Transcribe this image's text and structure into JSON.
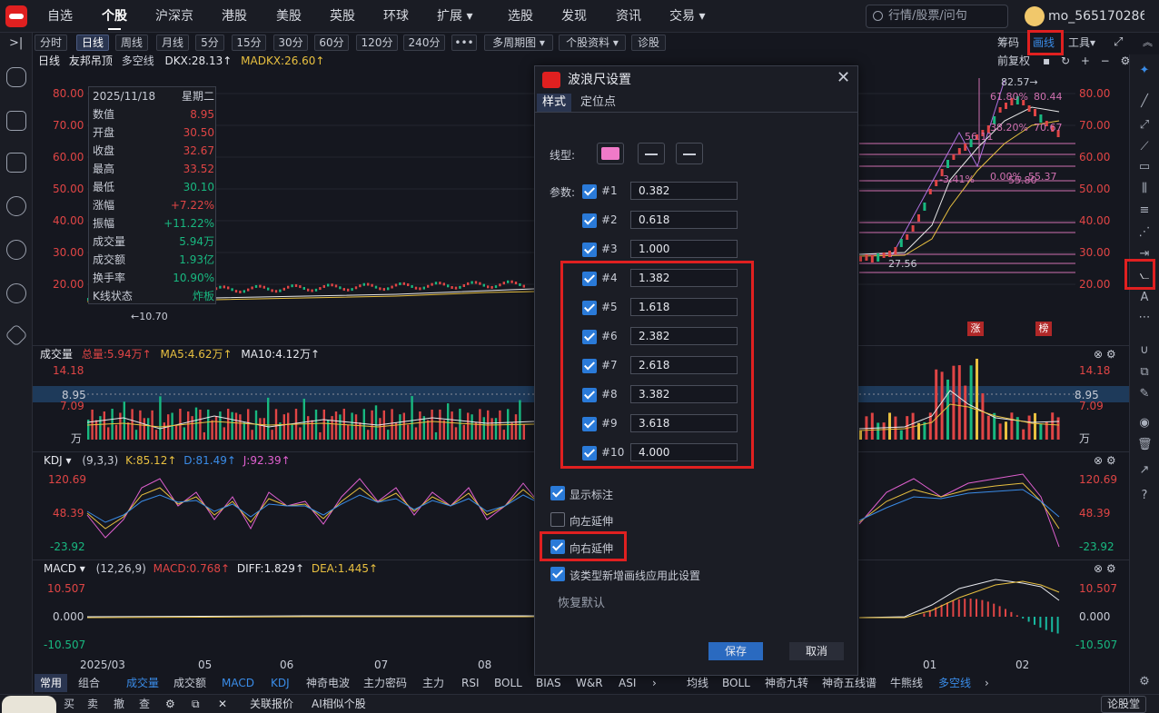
{
  "nav": {
    "items": [
      "自选",
      "个股",
      "沪深京",
      "港股",
      "美股",
      "英股",
      "环球",
      "扩展 ▾",
      "选股",
      "发现",
      "资讯",
      "交易 ▾"
    ],
    "search_placeholder": "行情/股票/问句",
    "username": "mo_565170286"
  },
  "toolbar": {
    "periods": [
      "分时",
      "日线",
      "周线",
      "月线",
      "5分",
      "15分",
      "30分",
      "60分",
      "120分",
      "240分",
      "•••",
      "多周期图 ▾",
      "个股资料 ▾",
      "诊股"
    ],
    "right": {
      "chips": "筹码",
      "drawing": "画线",
      "tools": "工具▾"
    }
  },
  "main": {
    "legend": {
      "period": "日线",
      "title": "友邦吊顶",
      "mode": "多空线",
      "dkx": "DKX:28.13↑",
      "madkx": "MADKX:26.60↑",
      "fuquan": "前复权"
    },
    "yticks": [
      "80.00",
      "70.00",
      "60.00",
      "50.00",
      "40.00",
      "30.00",
      "20.00"
    ],
    "annotations": {
      "low_price": "←10.70",
      "fib_low": "27.56",
      "fib_high": "82.57→",
      "f618": "61.80%",
      "f382": "38.20%",
      "f_neg": "-3.41%",
      "f0": "0.00%",
      "v5611": "56.11",
      "v5580": "55.80",
      "v5537": "55.37",
      "v8044": "80.44",
      "v7067": "70.67",
      "zhang": "涨",
      "bang": "榜"
    }
  },
  "data_window": {
    "date": "2025/11/18",
    "weekday": "星期二",
    "rows": [
      {
        "k": "数值",
        "v": "8.95",
        "c": "#e04545"
      },
      {
        "k": "开盘",
        "v": "30.50",
        "c": "#e04545"
      },
      {
        "k": "收盘",
        "v": "32.67",
        "c": "#e04545"
      },
      {
        "k": "最高",
        "v": "33.52",
        "c": "#e04545"
      },
      {
        "k": "最低",
        "v": "30.10",
        "c": "#18b880"
      },
      {
        "k": "涨幅",
        "v": "+7.22%",
        "c": "#e04545"
      },
      {
        "k": "振幅",
        "v": "+11.22%",
        "c": "#18b880"
      },
      {
        "k": "成交量",
        "v": "5.94万",
        "c": "#18b880"
      },
      {
        "k": "成交额",
        "v": "1.93亿",
        "c": "#18b880"
      },
      {
        "k": "换手率",
        "v": "10.90%",
        "c": "#18b880"
      },
      {
        "k": "K线状态",
        "v": "炸板",
        "c": "#18b880"
      }
    ]
  },
  "volume": {
    "title": "成交量",
    "total": "总量:5.94万↑",
    "ma5": "MA5:4.62万↑",
    "ma10": "MA10:4.12万↑",
    "yticks": [
      "14.18",
      "8.95",
      "7.09",
      "万"
    ]
  },
  "kdj": {
    "title": "KDJ ▾",
    "params": "(9,3,3)",
    "k": "K:85.12↑",
    "d": "D:81.49↑",
    "j": "J:92.39↑",
    "yticks": [
      "120.69",
      "48.39",
      "-23.92"
    ]
  },
  "macd": {
    "title": "MACD ▾",
    "params": "(12,26,9)",
    "macd": "MACD:0.768↑",
    "diff": "DIFF:1.829↑",
    "dea": "DEA:1.445↑",
    "yticks": [
      "10.507",
      "0.000",
      "-10.507"
    ]
  },
  "xaxis": [
    "2025/03",
    "05",
    "06",
    "07",
    "08",
    "01",
    "02"
  ],
  "dialog": {
    "title": "波浪尺设置",
    "tabs": [
      "样式",
      "定位点"
    ],
    "line_type_label": "线型:",
    "params_label": "参数:",
    "line_color": "#f07ac8",
    "params": [
      {
        "n": "#1",
        "v": "0.382"
      },
      {
        "n": "#2",
        "v": "0.618"
      },
      {
        "n": "#3",
        "v": "1.000"
      },
      {
        "n": "#4",
        "v": "1.382"
      },
      {
        "n": "#5",
        "v": "1.618"
      },
      {
        "n": "#6",
        "v": "2.382"
      },
      {
        "n": "#7",
        "v": "2.618"
      },
      {
        "n": "#8",
        "v": "3.382"
      },
      {
        "n": "#9",
        "v": "3.618"
      },
      {
        "n": "#10",
        "v": "4.000"
      }
    ],
    "options": [
      {
        "label": "显示标注",
        "checked": true
      },
      {
        "label": "向左延伸",
        "checked": false
      },
      {
        "label": "向右延伸",
        "checked": true
      },
      {
        "label": "该类型新增画线应用此设置",
        "checked": true
      }
    ],
    "reset": "恢复默认",
    "save": "保存",
    "cancel": "取消"
  },
  "bottom_tabs": {
    "left": [
      "常用",
      "组合"
    ],
    "indicators": [
      "成交量",
      "成交额",
      "MACD",
      "KDJ",
      "神奇电波",
      "主力密码",
      "主力",
      "RSI",
      "BOLL",
      "BIAS",
      "W&R",
      "ASI"
    ],
    "right": [
      "均线",
      "BOLL",
      "神奇九转",
      "神奇五线谱",
      "牛熊线",
      "多空线"
    ]
  },
  "statusbar": {
    "items": [
      "买",
      "卖",
      "撤",
      "查"
    ],
    "quote": "关联报价",
    "ai": "AI相似个股",
    "forum": "论股堂"
  }
}
